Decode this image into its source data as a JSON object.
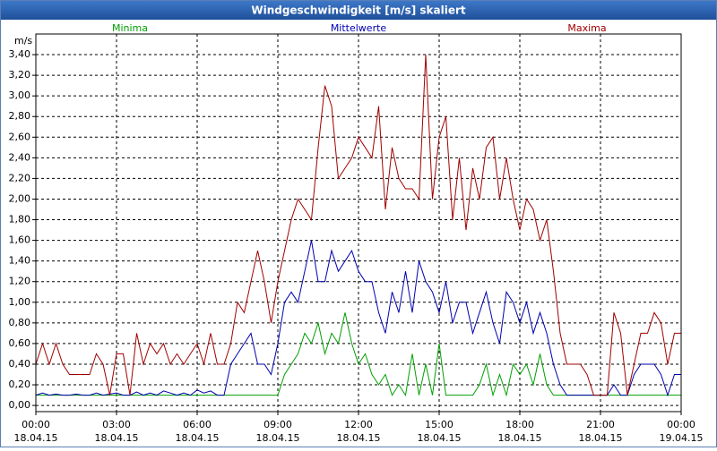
{
  "chart_data": {
    "type": "line",
    "title": "Windgeschwindigkeit [m/s] skaliert",
    "y_label": "m/s",
    "x": [
      0,
      0.25,
      0.5,
      0.75,
      1,
      1.25,
      1.5,
      1.75,
      2,
      2.25,
      2.5,
      2.75,
      3,
      3.25,
      3.5,
      3.75,
      4,
      4.25,
      4.5,
      4.75,
      5,
      5.25,
      5.5,
      5.75,
      6,
      6.25,
      6.5,
      6.75,
      7,
      7.25,
      7.5,
      7.75,
      8,
      8.25,
      8.5,
      8.75,
      9,
      9.25,
      9.5,
      9.75,
      10,
      10.25,
      10.5,
      10.75,
      11,
      11.25,
      11.5,
      11.75,
      12,
      12.25,
      12.5,
      12.75,
      13,
      13.25,
      13.5,
      13.75,
      14,
      14.25,
      14.5,
      14.75,
      15,
      15.25,
      15.5,
      15.75,
      16,
      16.25,
      16.5,
      16.75,
      17,
      17.25,
      17.5,
      17.75,
      18,
      18.25,
      18.5,
      18.75,
      19,
      19.25,
      19.5,
      19.75,
      20,
      20.25,
      20.5,
      20.75,
      21,
      21.25,
      21.5,
      21.75,
      22,
      22.25,
      22.5,
      22.75,
      23,
      23.25,
      23.5,
      23.75,
      24
    ],
    "series": [
      {
        "name": "Minima",
        "color": "#00a000",
        "values": [
          0.1,
          0.1,
          0.1,
          0.1,
          0.1,
          0.1,
          0.1,
          0.1,
          0.1,
          0.1,
          0.1,
          0.1,
          0.1,
          0.1,
          0.1,
          0.1,
          0.1,
          0.1,
          0.1,
          0.1,
          0.1,
          0.1,
          0.1,
          0.1,
          0.1,
          0.1,
          0.1,
          0.1,
          0.1,
          0.1,
          0.1,
          0.1,
          0.1,
          0.1,
          0.1,
          0.1,
          0.1,
          0.3,
          0.4,
          0.5,
          0.7,
          0.6,
          0.8,
          0.5,
          0.7,
          0.6,
          0.9,
          0.6,
          0.4,
          0.5,
          0.3,
          0.2,
          0.3,
          0.1,
          0.2,
          0.1,
          0.5,
          0.1,
          0.4,
          0.1,
          0.6,
          0.1,
          0.1,
          0.1,
          0.1,
          0.1,
          0.2,
          0.4,
          0.1,
          0.3,
          0.1,
          0.4,
          0.3,
          0.4,
          0.2,
          0.5,
          0.2,
          0.1,
          0.1,
          0.1,
          0.1,
          0.1,
          0.1,
          0.1,
          0.1,
          0.1,
          0.1,
          0.1,
          0.1,
          0.1,
          0.1,
          0.1,
          0.1,
          0.1,
          0.1,
          0.1,
          0.1
        ]
      },
      {
        "name": "Mittelwerte",
        "color": "#0000b0",
        "values": [
          0.1,
          0.12,
          0.1,
          0.11,
          0.1,
          0.1,
          0.11,
          0.1,
          0.1,
          0.12,
          0.1,
          0.11,
          0.12,
          0.1,
          0.1,
          0.13,
          0.1,
          0.12,
          0.1,
          0.14,
          0.12,
          0.1,
          0.12,
          0.1,
          0.15,
          0.12,
          0.14,
          0.1,
          0.1,
          0.4,
          0.5,
          0.6,
          0.7,
          0.4,
          0.4,
          0.3,
          0.6,
          1.0,
          1.1,
          1.0,
          1.3,
          1.6,
          1.2,
          1.2,
          1.5,
          1.3,
          1.4,
          1.5,
          1.3,
          1.2,
          1.2,
          0.9,
          0.7,
          1.1,
          0.9,
          1.3,
          0.9,
          1.4,
          1.2,
          1.1,
          0.9,
          1.2,
          0.8,
          1.0,
          1.0,
          0.7,
          0.9,
          1.1,
          0.8,
          0.6,
          1.1,
          1.0,
          0.8,
          1.0,
          0.7,
          0.9,
          0.7,
          0.4,
          0.2,
          0.1,
          0.1,
          0.1,
          0.1,
          0.1,
          0.1,
          0.1,
          0.2,
          0.1,
          0.1,
          0.3,
          0.4,
          0.4,
          0.4,
          0.3,
          0.1,
          0.3,
          0.3
        ]
      },
      {
        "name": "Maxima",
        "color": "#a00000",
        "values": [
          0.4,
          0.6,
          0.4,
          0.6,
          0.4,
          0.3,
          0.3,
          0.3,
          0.3,
          0.5,
          0.4,
          0.1,
          0.5,
          0.5,
          0.1,
          0.7,
          0.4,
          0.6,
          0.5,
          0.6,
          0.4,
          0.5,
          0.4,
          0.5,
          0.6,
          0.4,
          0.7,
          0.4,
          0.4,
          0.6,
          1.0,
          0.9,
          1.2,
          1.5,
          1.2,
          0.8,
          1.2,
          1.5,
          1.8,
          2.0,
          1.9,
          1.8,
          2.5,
          3.1,
          2.9,
          2.2,
          2.3,
          2.4,
          2.6,
          2.5,
          2.4,
          2.9,
          1.9,
          2.5,
          2.2,
          2.1,
          2.1,
          2.0,
          3.4,
          2.0,
          2.6,
          2.8,
          1.8,
          2.4,
          1.7,
          2.3,
          2.0,
          2.5,
          2.6,
          2.0,
          2.4,
          2.0,
          1.7,
          2.0,
          1.9,
          1.6,
          1.8,
          1.3,
          0.7,
          0.4,
          0.4,
          0.4,
          0.3,
          0.1,
          0.1,
          0.1,
          0.9,
          0.7,
          0.1,
          0.4,
          0.7,
          0.7,
          0.9,
          0.8,
          0.4,
          0.7,
          0.7
        ]
      }
    ],
    "xlim": [
      0,
      24
    ],
    "xticks": [
      {
        "value": 0,
        "label": "00:00",
        "date": "18.04.15"
      },
      {
        "value": 3,
        "label": "03:00",
        "date": "18.04.15"
      },
      {
        "value": 6,
        "label": "06:00",
        "date": "18.04.15"
      },
      {
        "value": 9,
        "label": "09:00",
        "date": "18.04.15"
      },
      {
        "value": 12,
        "label": "12:00",
        "date": "18.04.15"
      },
      {
        "value": 15,
        "label": "15:00",
        "date": "18.04.15"
      },
      {
        "value": 18,
        "label": "18:00",
        "date": "18.04.15"
      },
      {
        "value": 21,
        "label": "21:00",
        "date": "18.04.15"
      },
      {
        "value": 24,
        "label": "00:00",
        "date": "19.04.15"
      }
    ],
    "ylim": [
      -0.06,
      3.6
    ],
    "yticks": [
      {
        "value": 0,
        "label": "0,00"
      },
      {
        "value": 0.2,
        "label": "0,20"
      },
      {
        "value": 0.4,
        "label": "0,40"
      },
      {
        "value": 0.6,
        "label": "0,60"
      },
      {
        "value": 0.8,
        "label": "0,80"
      },
      {
        "value": 1,
        "label": "1,00"
      },
      {
        "value": 1.2,
        "label": "1,20"
      },
      {
        "value": 1.4,
        "label": "1,40"
      },
      {
        "value": 1.6,
        "label": "1,60"
      },
      {
        "value": 1.8,
        "label": "1,80"
      },
      {
        "value": 2,
        "label": "2,00"
      },
      {
        "value": 2.2,
        "label": "2,20"
      },
      {
        "value": 2.4,
        "label": "2,40"
      },
      {
        "value": 2.6,
        "label": "2,60"
      },
      {
        "value": 2.8,
        "label": "2,80"
      },
      {
        "value": 3,
        "label": "3,00"
      },
      {
        "value": 3.2,
        "label": "3,20"
      },
      {
        "value": 3.4,
        "label": "3,40"
      }
    ],
    "grid": true
  }
}
